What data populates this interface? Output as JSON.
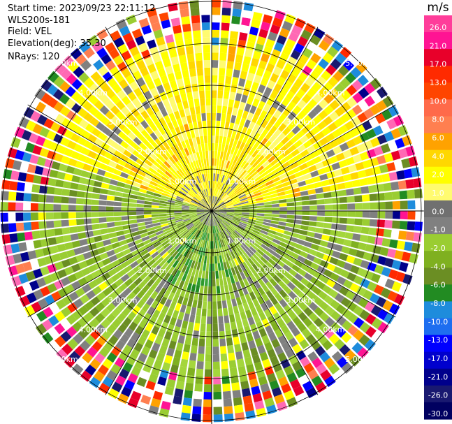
{
  "header": {
    "start_time": "Start time: 2023/09/23 22:11:12",
    "instrument": "WLS200s-181",
    "field": "Field: VEL",
    "elevation": "Elevation(deg): 35.30",
    "nrays": "NRays: 120"
  },
  "chart_data": {
    "type": "heatmap",
    "projection": "polar PPI",
    "field": "VEL",
    "units": "m/s",
    "n_rays": 120,
    "elevation_deg": 35.3,
    "range_rings_km": [
      "1.00km",
      "2.00km",
      "3.00km",
      "4.00km",
      "5.00km"
    ],
    "colorbar": {
      "label": "m/s",
      "ticks": [
        "26.0",
        "21.0",
        "17.0",
        "13.0",
        "10.0",
        "8.0",
        "6.0",
        "4.0",
        "2.0",
        "1.0",
        "0.0",
        "-1.0",
        "-2.0",
        "-4.0",
        "-6.0",
        "-8.0",
        "-10.0",
        "-13.0",
        "-17.0",
        "-21.0",
        "-26.0",
        "-30.0"
      ],
      "colors": [
        "#ff3d9a",
        "#ff1493",
        "#e8002a",
        "#ff2a00",
        "#ff4500",
        "#ff6a4a",
        "#ff7f50",
        "#ffa200",
        "#ffd700",
        "#ffff00",
        "#fffb70",
        "#707070",
        "#808080",
        "#9acd32",
        "#7fb020",
        "#6b8e23",
        "#228b22",
        "#1e8cdc",
        "#1e6ef0",
        "#0000ff",
        "#0000cd",
        "#00008b",
        "#191970",
        "#000060"
      ]
    },
    "regions": [
      {
        "range_km": [
          0,
          0.6
        ],
        "description": "mixed yellow and grey near center"
      },
      {
        "range_km": [
          0.6,
          2.3
        ],
        "northern_half": "yellow (0 to 2 m/s)",
        "southern_half": "light green / olive (-1 to -4 m/s)"
      },
      {
        "range_km": [
          2.3,
          4.2
        ],
        "northern_half": "yellow",
        "southern_half": "green"
      },
      {
        "range_km": [
          4.2,
          5.9
        ],
        "description": "noisy multicolor"
      }
    ]
  }
}
